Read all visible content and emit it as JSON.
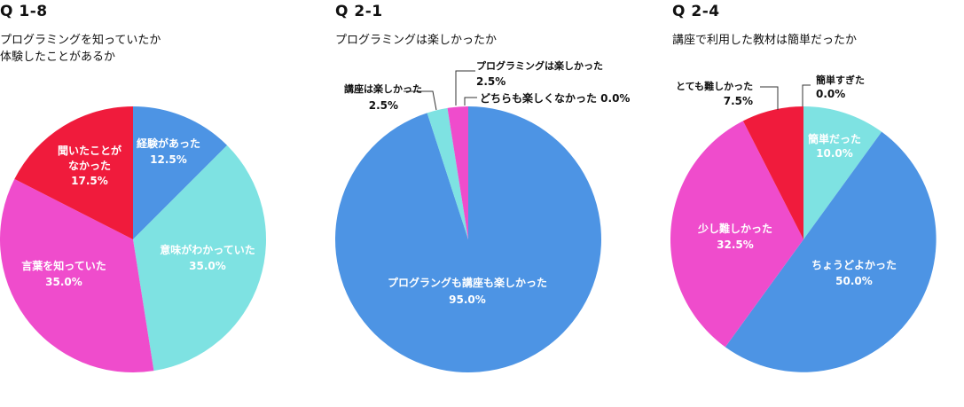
{
  "charts": [
    {
      "id": "q18",
      "qnum": "Q 1-8",
      "title_lines": [
        "プログラミングを知っていたか",
        "体験したことがあるか"
      ],
      "chart_data": {
        "type": "pie",
        "title": "プログラミングを知っていたか体験したことがあるか",
        "start": "12 o'clock",
        "direction": "clockwise",
        "slices": [
          {
            "label": "経験があった",
            "value": 12.5,
            "value_label": "12.5%",
            "color": "#4d94e4"
          },
          {
            "label": "意味がわかっていた",
            "value": 35.0,
            "value_label": "35.0%",
            "color": "#7ee2e2"
          },
          {
            "label": "言葉を知っていた",
            "value": 35.0,
            "value_label": "35.0%",
            "color": "#ef4ccc"
          },
          {
            "label": "聞いたことがなかった",
            "value": 17.5,
            "value_label": "17.5%",
            "color": "#f01b3c"
          }
        ]
      }
    },
    {
      "id": "q21",
      "qnum": "Q 2-1",
      "title_lines": [
        "プログラミングは楽しかったか"
      ],
      "chart_data": {
        "type": "pie",
        "title": "プログラミングは楽しかったか",
        "start": "12 o'clock",
        "direction": "clockwise",
        "slices": [
          {
            "label": "プログラングも講座も楽しかった",
            "value": 95.0,
            "value_label": "95.0%",
            "color": "#4d94e4"
          },
          {
            "label": "講座は楽しかった",
            "value": 2.5,
            "value_label": "2.5%",
            "color": "#7ee2e2"
          },
          {
            "label": "プログラミングは楽しかった",
            "value": 2.5,
            "value_label": "2.5%",
            "color": "#ef4ccc"
          },
          {
            "label": "どちらも楽しくなかった",
            "value": 0.0,
            "value_label": "0.0%",
            "color": "#f01b3c"
          }
        ]
      }
    },
    {
      "id": "q24",
      "qnum": "Q 2-4",
      "title_lines": [
        "講座で利用した教材は簡単だったか"
      ],
      "chart_data": {
        "type": "pie",
        "title": "講座で利用した教材は簡単だったか",
        "start": "12 o'clock",
        "direction": "clockwise",
        "slices": [
          {
            "label": "簡単すぎた",
            "value": 0.0,
            "value_label": "0.0%",
            "color": "#4d94e4"
          },
          {
            "label": "簡単だった",
            "value": 10.0,
            "value_label": "10.0%",
            "color": "#7ee2e2"
          },
          {
            "label": "ちょうどよかった",
            "value": 50.0,
            "value_label": "50.0%",
            "color": "#4d94e4"
          },
          {
            "label": "少し難しかった",
            "value": 32.5,
            "value_label": "32.5%",
            "color": "#ef4ccc"
          },
          {
            "label": "とても難しかった",
            "value": 7.5,
            "value_label": "7.5%",
            "color": "#f01b3c"
          }
        ]
      }
    }
  ]
}
